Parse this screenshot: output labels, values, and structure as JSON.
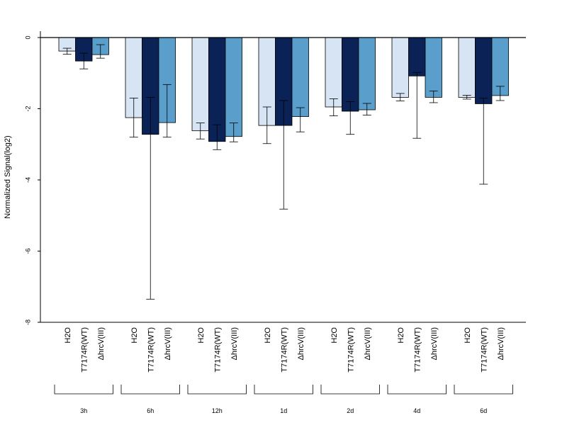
{
  "chart_data": {
    "type": "bar",
    "ylabel": "Normalized Signal(log2)",
    "ylim": [
      -8,
      0
    ],
    "yticks": [
      0,
      -2,
      -4,
      -6,
      -8
    ],
    "groups": [
      "3h",
      "6h",
      "12h",
      "1d",
      "2d",
      "4d",
      "6d"
    ],
    "series": [
      {
        "name": "H2O",
        "color": "#d6e4f3",
        "values": [
          -0.38,
          -2.25,
          -2.62,
          -2.47,
          -1.95,
          -1.68,
          -1.68
        ],
        "err_low": [
          -0.47,
          -2.8,
          -2.85,
          -2.98,
          -2.2,
          -1.78,
          -1.73
        ],
        "err_high": [
          -0.3,
          -1.7,
          -2.4,
          -1.95,
          -1.72,
          -1.57,
          -1.62
        ]
      },
      {
        "name": "T7174R(WT)",
        "color": "#0b2257",
        "values": [
          -0.66,
          -2.72,
          -2.92,
          -2.47,
          -2.07,
          -1.08,
          -1.86
        ],
        "err_low": [
          -0.88,
          -7.35,
          -3.15,
          -4.82,
          -2.72,
          -2.83,
          -4.12
        ],
        "err_high": [
          -0.44,
          -1.68,
          -2.45,
          -1.77,
          -1.8,
          -0.98,
          -1.7
        ]
      },
      {
        "name": "ΔhrcV(III)",
        "color": "#5a9ecc",
        "values": [
          -0.48,
          -2.39,
          -2.78,
          -2.22,
          -2.03,
          -1.68,
          -1.63
        ],
        "err_low": [
          -0.58,
          -2.8,
          -2.93,
          -2.65,
          -2.18,
          -1.83,
          -1.77
        ],
        "err_high": [
          -0.2,
          -1.32,
          -2.4,
          -1.97,
          -1.85,
          -1.5,
          -1.37
        ]
      }
    ]
  }
}
